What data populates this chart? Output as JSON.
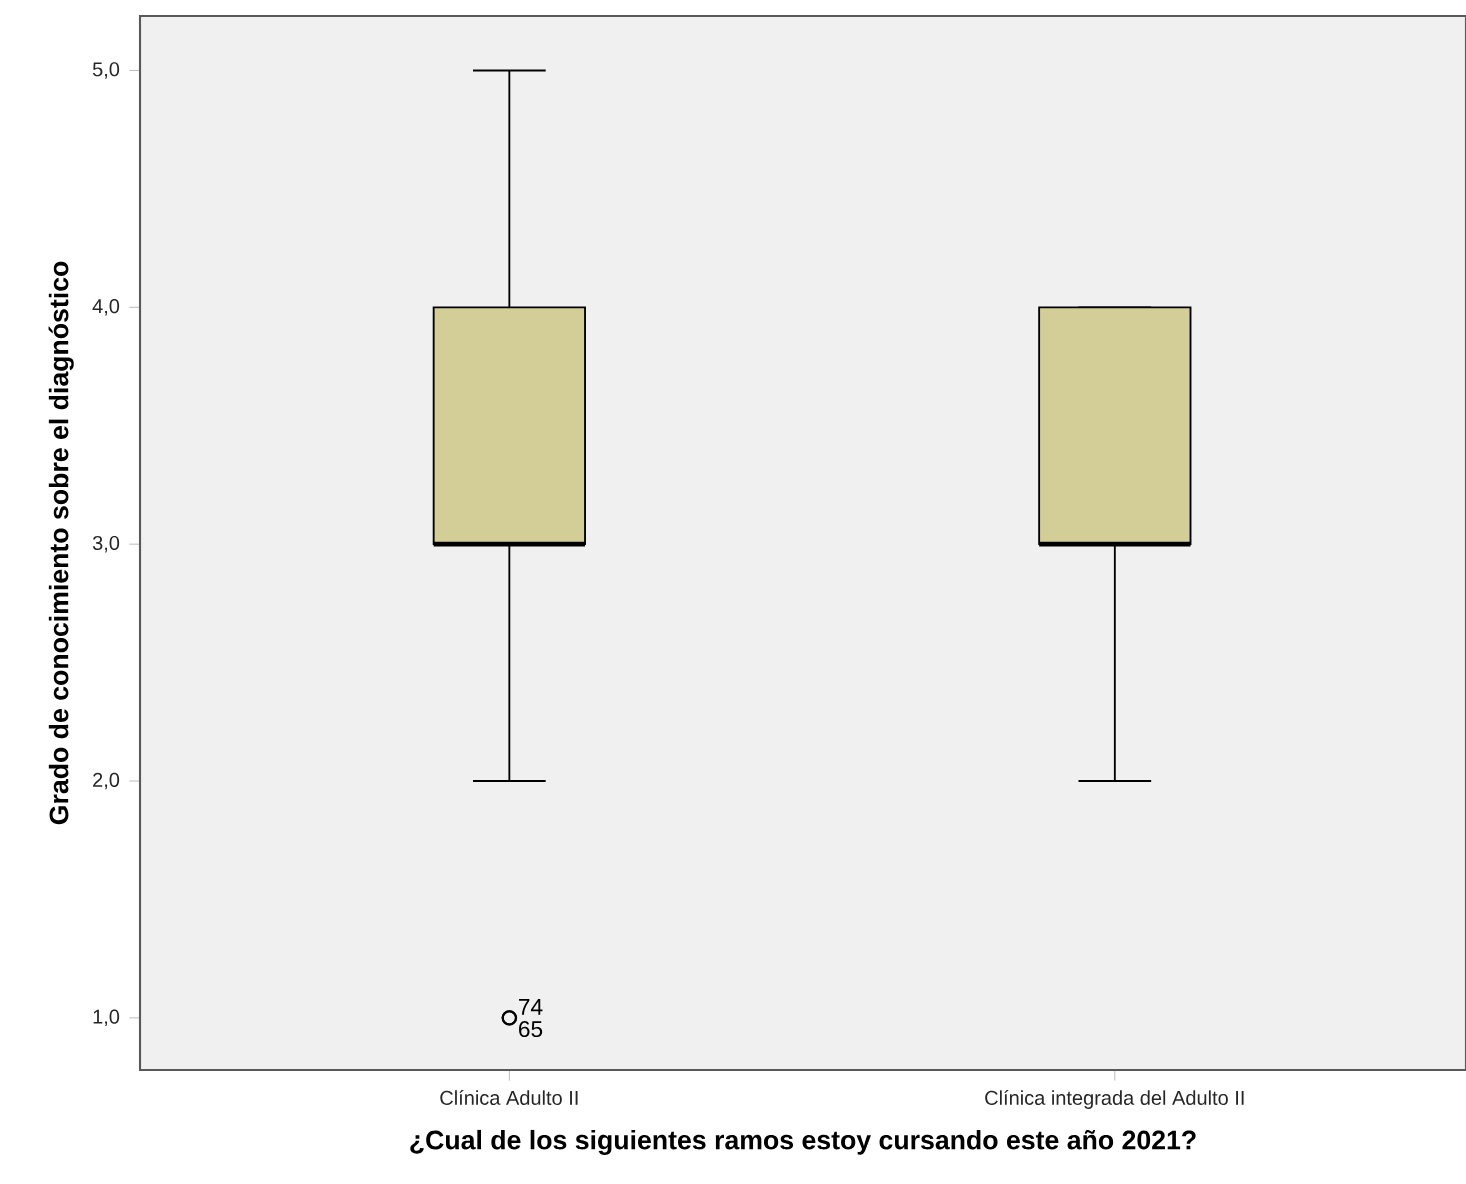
{
  "chart_data": {
    "type": "box",
    "xlabel": "¿Cual de los siguientes ramos estoy cursando este año 2021?",
    "ylabel": "Grado de conocimiento sobre el diagnóstico",
    "categories": [
      "Clínica Adulto II",
      "Clínica integrada del Adulto II"
    ],
    "boxes": [
      {
        "low": 2,
        "q1": 3,
        "median": 3,
        "q3": 4,
        "high": 5,
        "outliers": [
          1,
          1
        ]
      },
      {
        "low": 2,
        "q1": 3,
        "median": 3,
        "q3": 4,
        "high": 4
      }
    ],
    "color": "#d3ce97",
    "marker": "circle",
    "ylim": [
      0.78,
      5.23
    ],
    "yticks": [
      {
        "value": 1,
        "label": "1,0"
      },
      {
        "value": 2,
        "label": "2,0"
      },
      {
        "value": 3,
        "label": "3,0"
      },
      {
        "value": 4,
        "label": "4,0"
      },
      {
        "value": 5,
        "label": "5,0"
      }
    ],
    "annotations": [
      "74",
      "65"
    ]
  }
}
